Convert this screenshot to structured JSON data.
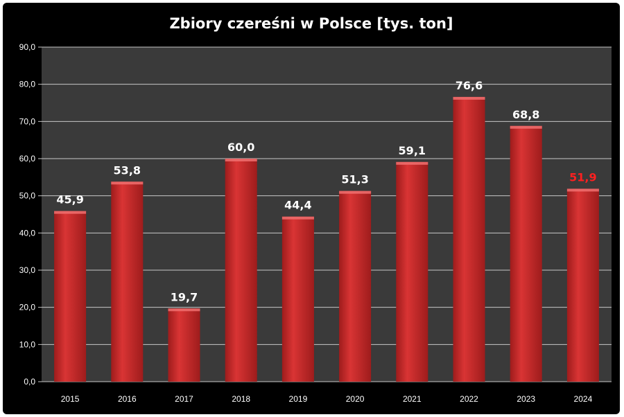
{
  "chart_data": {
    "type": "bar",
    "title": "Zbiory czereśni w Polsce [tys. ton]",
    "categories": [
      "2015",
      "2016",
      "2017",
      "2018",
      "2019",
      "2020",
      "2021",
      "2022",
      "2023",
      "2024"
    ],
    "values": [
      45.9,
      53.8,
      19.7,
      60.0,
      44.4,
      51.3,
      59.1,
      76.6,
      68.8,
      51.9
    ],
    "data_labels": [
      "45,9",
      "53,8",
      "19,7",
      "60,0",
      "44,4",
      "51,3",
      "59,1",
      "76,6",
      "68,8",
      "51,9"
    ],
    "label_colors": [
      "#ffffff",
      "#ffffff",
      "#ffffff",
      "#ffffff",
      "#ffffff",
      "#ffffff",
      "#ffffff",
      "#ffffff",
      "#ffffff",
      "#ff2020"
    ],
    "y_ticks": [
      "0,0",
      "10,0",
      "20,0",
      "30,0",
      "40,0",
      "50,0",
      "60,0",
      "70,0",
      "80,0",
      "90,0"
    ],
    "ylim": [
      0,
      90
    ],
    "grid": true,
    "xlabel": "",
    "ylabel": "",
    "colors": {
      "background": "#000000",
      "plot_area": "#3a3a3a",
      "bar": "#d93434",
      "bar_dark": "#9e1c1c",
      "bar_light": "#f07070",
      "gridline": "#c8c8c8"
    }
  }
}
